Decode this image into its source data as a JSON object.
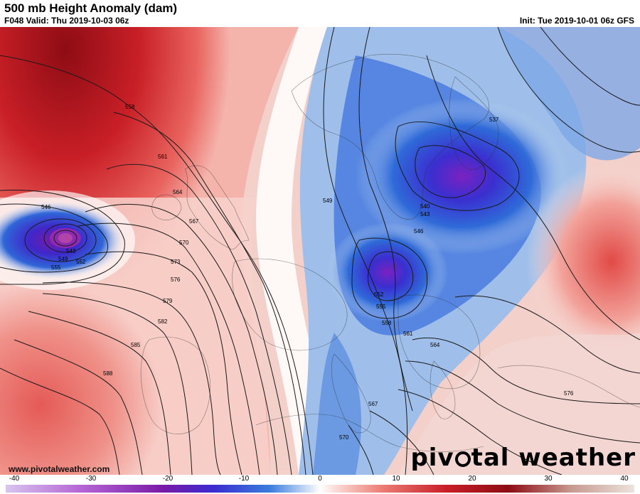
{
  "header": {
    "title": "500 mb Height Anomaly (dam)",
    "valid": "F048 Valid: Thu 2019-10-03 06z",
    "init": "Init: Tue 2019-10-01 06z GFS"
  },
  "footer": {
    "website": "www.pivotalweather.com",
    "brand_left": "piv",
    "brand_right": "tal weather"
  },
  "colorbar": {
    "ticks": [
      "-40",
      "-30",
      "-20",
      "-10",
      "0",
      "10",
      "20",
      "30",
      "40"
    ],
    "colors": {
      "deep_neg": "#c7a6e6",
      "purple": "#8a2fc9",
      "blue": "#1e4fd6",
      "light_blue": "#cfe0f3",
      "zero": "#ffffff",
      "light_red": "#f6c9c2",
      "red": "#d8242a",
      "dark_red": "#8e0c14",
      "pale_pos": "#e8d9d3"
    }
  },
  "map": {
    "contour_labels": [
      "558",
      "561",
      "564",
      "567",
      "570",
      "573",
      "576",
      "579",
      "582",
      "585",
      "588",
      "546",
      "543",
      "549",
      "552",
      "555",
      "537",
      "540",
      "543",
      "546",
      "549",
      "552",
      "555",
      "558",
      "561",
      "564",
      "567",
      "570",
      "576"
    ]
  }
}
